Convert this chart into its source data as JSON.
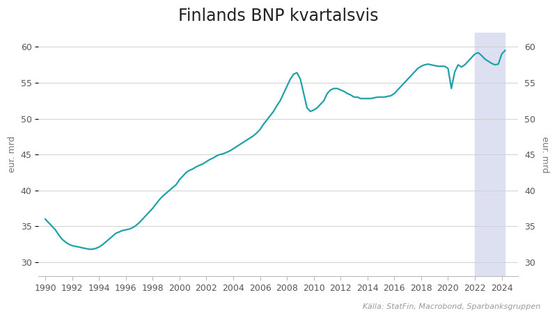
{
  "title": "Finlands BNP kvartalsvis",
  "ylabel_left": "eur. mrd",
  "ylabel_right": "eur. mrd",
  "source": "Källa: StatFin, Macrobond, Sparbanksgruppen",
  "ylim": [
    28,
    62
  ],
  "yticks": [
    30,
    35,
    40,
    45,
    50,
    55,
    60
  ],
  "xmin": 1989.5,
  "xmax": 2025.2,
  "xticks": [
    1990,
    1992,
    1994,
    1996,
    1998,
    2000,
    2002,
    2004,
    2006,
    2008,
    2010,
    2012,
    2014,
    2016,
    2018,
    2020,
    2022,
    2024
  ],
  "shade_start": 2022.0,
  "shade_end": 2024.25,
  "line_color": "#20a0a8",
  "shade_color": "#dde0f0",
  "background_color": "#ffffff",
  "title_fontsize": 17,
  "label_fontsize": 9,
  "source_fontsize": 8,
  "line_width": 1.6,
  "gdp_data": {
    "years": [
      1990.0,
      1990.25,
      1990.5,
      1990.75,
      1991.0,
      1991.25,
      1991.5,
      1991.75,
      1992.0,
      1992.25,
      1992.5,
      1992.75,
      1993.0,
      1993.25,
      1993.5,
      1993.75,
      1994.0,
      1994.25,
      1994.5,
      1994.75,
      1995.0,
      1995.25,
      1995.5,
      1995.75,
      1996.0,
      1996.25,
      1996.5,
      1996.75,
      1997.0,
      1997.25,
      1997.5,
      1997.75,
      1998.0,
      1998.25,
      1998.5,
      1998.75,
      1999.0,
      1999.25,
      1999.5,
      1999.75,
      2000.0,
      2000.25,
      2000.5,
      2000.75,
      2001.0,
      2001.25,
      2001.5,
      2001.75,
      2002.0,
      2002.25,
      2002.5,
      2002.75,
      2003.0,
      2003.25,
      2003.5,
      2003.75,
      2004.0,
      2004.25,
      2004.5,
      2004.75,
      2005.0,
      2005.25,
      2005.5,
      2005.75,
      2006.0,
      2006.25,
      2006.5,
      2006.75,
      2007.0,
      2007.25,
      2007.5,
      2007.75,
      2008.0,
      2008.25,
      2008.5,
      2008.75,
      2009.0,
      2009.25,
      2009.5,
      2009.75,
      2010.0,
      2010.25,
      2010.5,
      2010.75,
      2011.0,
      2011.25,
      2011.5,
      2011.75,
      2012.0,
      2012.25,
      2012.5,
      2012.75,
      2013.0,
      2013.25,
      2013.5,
      2013.75,
      2014.0,
      2014.25,
      2014.5,
      2014.75,
      2015.0,
      2015.25,
      2015.5,
      2015.75,
      2016.0,
      2016.25,
      2016.5,
      2016.75,
      2017.0,
      2017.25,
      2017.5,
      2017.75,
      2018.0,
      2018.25,
      2018.5,
      2018.75,
      2019.0,
      2019.25,
      2019.5,
      2019.75,
      2020.0,
      2020.25,
      2020.5,
      2020.75,
      2021.0,
      2021.25,
      2021.5,
      2021.75,
      2022.0,
      2022.25,
      2022.5,
      2022.75,
      2023.0,
      2023.25,
      2023.5,
      2023.75,
      2024.0,
      2024.25
    ],
    "values": [
      36.0,
      35.5,
      35.0,
      34.5,
      33.8,
      33.2,
      32.8,
      32.5,
      32.3,
      32.2,
      32.1,
      32.0,
      31.9,
      31.8,
      31.8,
      31.9,
      32.1,
      32.4,
      32.8,
      33.2,
      33.6,
      34.0,
      34.2,
      34.4,
      34.5,
      34.6,
      34.8,
      35.1,
      35.5,
      36.0,
      36.5,
      37.0,
      37.5,
      38.1,
      38.7,
      39.2,
      39.6,
      40.0,
      40.4,
      40.8,
      41.5,
      42.0,
      42.5,
      42.8,
      43.0,
      43.3,
      43.5,
      43.7,
      44.0,
      44.3,
      44.5,
      44.8,
      45.0,
      45.1,
      45.3,
      45.5,
      45.8,
      46.1,
      46.4,
      46.7,
      47.0,
      47.3,
      47.6,
      48.0,
      48.5,
      49.2,
      49.8,
      50.4,
      51.0,
      51.8,
      52.5,
      53.5,
      54.5,
      55.5,
      56.2,
      56.4,
      55.5,
      53.5,
      51.5,
      51.0,
      51.2,
      51.5,
      52.0,
      52.5,
      53.5,
      54.0,
      54.2,
      54.2,
      54.0,
      53.8,
      53.5,
      53.3,
      53.0,
      53.0,
      52.8,
      52.8,
      52.8,
      52.8,
      52.9,
      53.0,
      53.0,
      53.0,
      53.1,
      53.2,
      53.5,
      54.0,
      54.5,
      55.0,
      55.5,
      56.0,
      56.5,
      57.0,
      57.3,
      57.5,
      57.6,
      57.5,
      57.4,
      57.3,
      57.3,
      57.3,
      57.0,
      54.2,
      56.5,
      57.5,
      57.2,
      57.5,
      58.0,
      58.5,
      59.0,
      59.2,
      58.8,
      58.3,
      58.0,
      57.7,
      57.5,
      57.6,
      59.0,
      59.5
    ]
  }
}
